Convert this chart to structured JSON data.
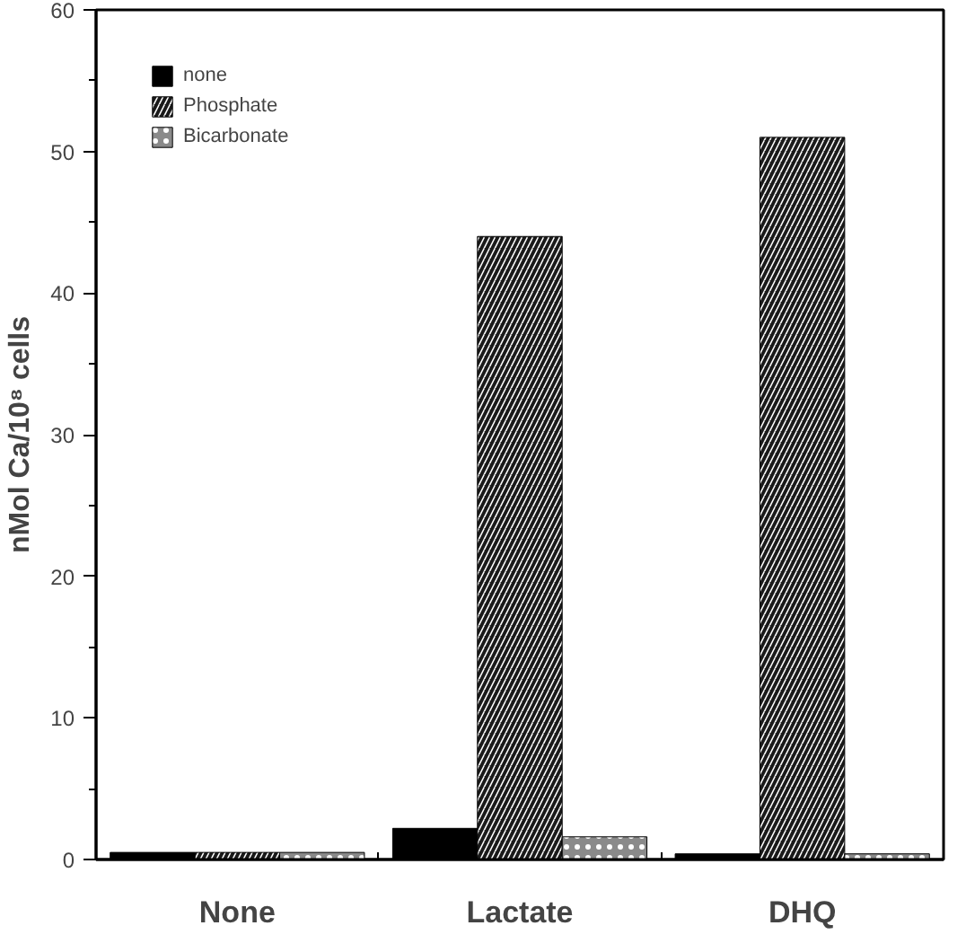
{
  "chart_data": {
    "type": "bar",
    "ylabel": "nMol Ca/10⁸ cells",
    "categories": [
      "None",
      "Lactate",
      "DHQ"
    ],
    "series": [
      {
        "name": "none",
        "color": "#000000",
        "values": [
          0.5,
          2.2,
          0.4
        ]
      },
      {
        "name": "Phosphate",
        "color": "#1a1a1a",
        "values": [
          0.5,
          44,
          51
        ]
      },
      {
        "name": "Bicarbonate",
        "color": "#8a8a8a",
        "values": [
          0.5,
          1.6,
          0.4
        ]
      }
    ],
    "ylim": [
      0,
      60
    ],
    "yticks": [
      0,
      10,
      20,
      30,
      40,
      50,
      60
    ],
    "grid": false,
    "legend": "top left"
  }
}
